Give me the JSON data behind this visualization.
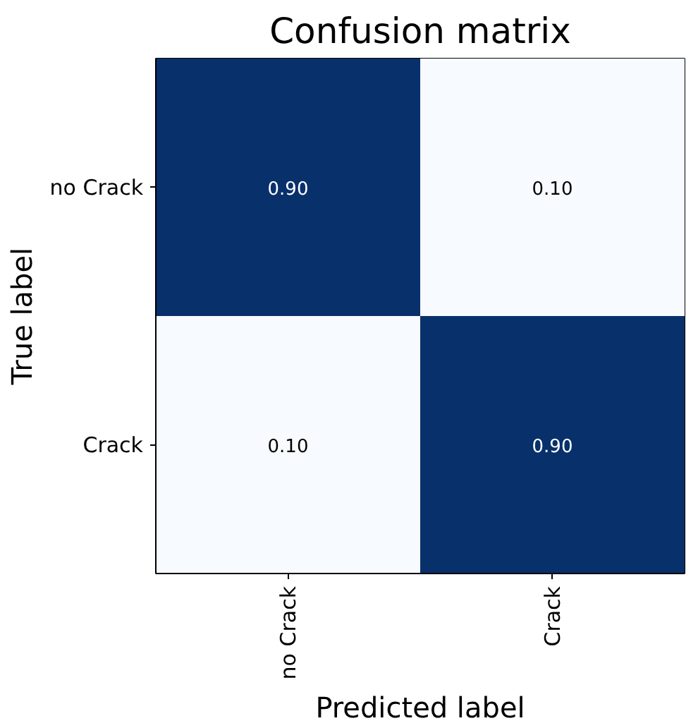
{
  "chart_data": {
    "type": "heatmap",
    "title": "Confusion matrix",
    "xlabel": "Predicted label",
    "ylabel": "True label",
    "categories": [
      "no Crack",
      "Crack"
    ],
    "y_categories": [
      "no Crack",
      "Crack"
    ],
    "cells": [
      [
        0.9,
        0.1
      ],
      [
        0.1,
        0.9
      ]
    ],
    "cell_labels": [
      [
        "0.90",
        "0.10"
      ],
      [
        "0.10",
        "0.90"
      ]
    ]
  }
}
